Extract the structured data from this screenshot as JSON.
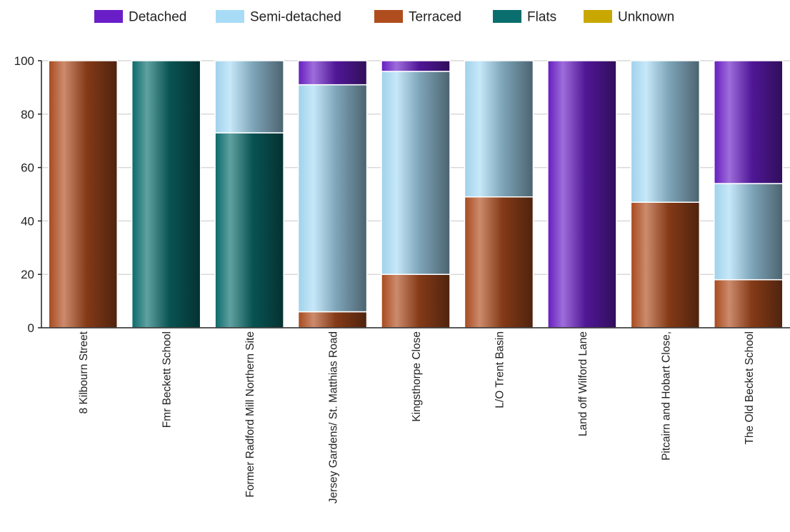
{
  "chart_data": {
    "type": "bar",
    "stacked": true,
    "title": "",
    "xlabel": "",
    "ylabel": "",
    "ylim": [
      0,
      100
    ],
    "yticks": [
      0,
      20,
      40,
      60,
      80,
      100
    ],
    "grid": true,
    "legend_position": "top",
    "categories": [
      "8 Kilbourn Street",
      "Fmr Beckett School",
      "Former Radford Mill Northern Site",
      "Jersey Gardens/ St. Matthias Road",
      "Kingsthorpe Close",
      "L/O Trent Basin",
      "Land off Wilford Lane",
      "Pitcairn and Hobart Close,",
      "The Old Becket School"
    ],
    "series": [
      {
        "name": "Detached",
        "color": "#6a1ec8",
        "values": [
          0,
          0,
          0,
          9,
          4,
          0,
          100,
          0,
          46
        ]
      },
      {
        "name": "Semi-detached",
        "color": "#a8dcf6",
        "values": [
          0,
          0,
          27,
          85,
          76,
          51,
          0,
          53,
          36
        ]
      },
      {
        "name": "Terraced",
        "color": "#b04d1e",
        "values": [
          100,
          0,
          0,
          6,
          20,
          49,
          0,
          47,
          18
        ]
      },
      {
        "name": "Flats",
        "color": "#0b6e6e",
        "values": [
          0,
          100,
          73,
          0,
          0,
          0,
          0,
          0,
          0
        ]
      },
      {
        "name": "Unknown",
        "color": "#c8a800",
        "values": [
          0,
          0,
          0,
          0,
          0,
          0,
          0,
          0,
          0
        ]
      }
    ]
  }
}
